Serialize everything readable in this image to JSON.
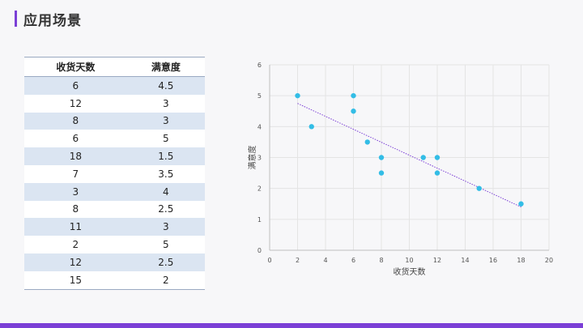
{
  "header": {
    "title": "应用场景"
  },
  "colors": {
    "accent": "#7b3fd6",
    "point": "#33bde6",
    "trendline": "#7b3fd6",
    "table_stripe": "#dbe5f2"
  },
  "table": {
    "headers": [
      "收货天数",
      "满意度"
    ],
    "rows": [
      [
        "6",
        "4.5"
      ],
      [
        "12",
        "3"
      ],
      [
        "8",
        "3"
      ],
      [
        "6",
        "5"
      ],
      [
        "18",
        "1.5"
      ],
      [
        "7",
        "3.5"
      ],
      [
        "3",
        "4"
      ],
      [
        "8",
        "2.5"
      ],
      [
        "11",
        "3"
      ],
      [
        "2",
        "5"
      ],
      [
        "12",
        "2.5"
      ],
      [
        "15",
        "2"
      ]
    ]
  },
  "chart_data": {
    "type": "scatter",
    "xlabel": "收货天数",
    "ylabel": "满意度",
    "xlim": [
      0,
      20
    ],
    "ylim": [
      0,
      6
    ],
    "xticks": [
      0,
      2,
      4,
      6,
      8,
      10,
      12,
      14,
      16,
      18,
      20
    ],
    "yticks": [
      0,
      1,
      2,
      3,
      4,
      5,
      6
    ],
    "grid": true,
    "trendline": {
      "type": "linear",
      "from": [
        2,
        4.75
      ],
      "to": [
        18,
        1.4
      ]
    },
    "x": [
      6,
      12,
      8,
      6,
      18,
      7,
      3,
      8,
      11,
      2,
      12,
      15
    ],
    "y": [
      4.5,
      3,
      3,
      5,
      1.5,
      3.5,
      4,
      2.5,
      3,
      5,
      2.5,
      2
    ]
  }
}
